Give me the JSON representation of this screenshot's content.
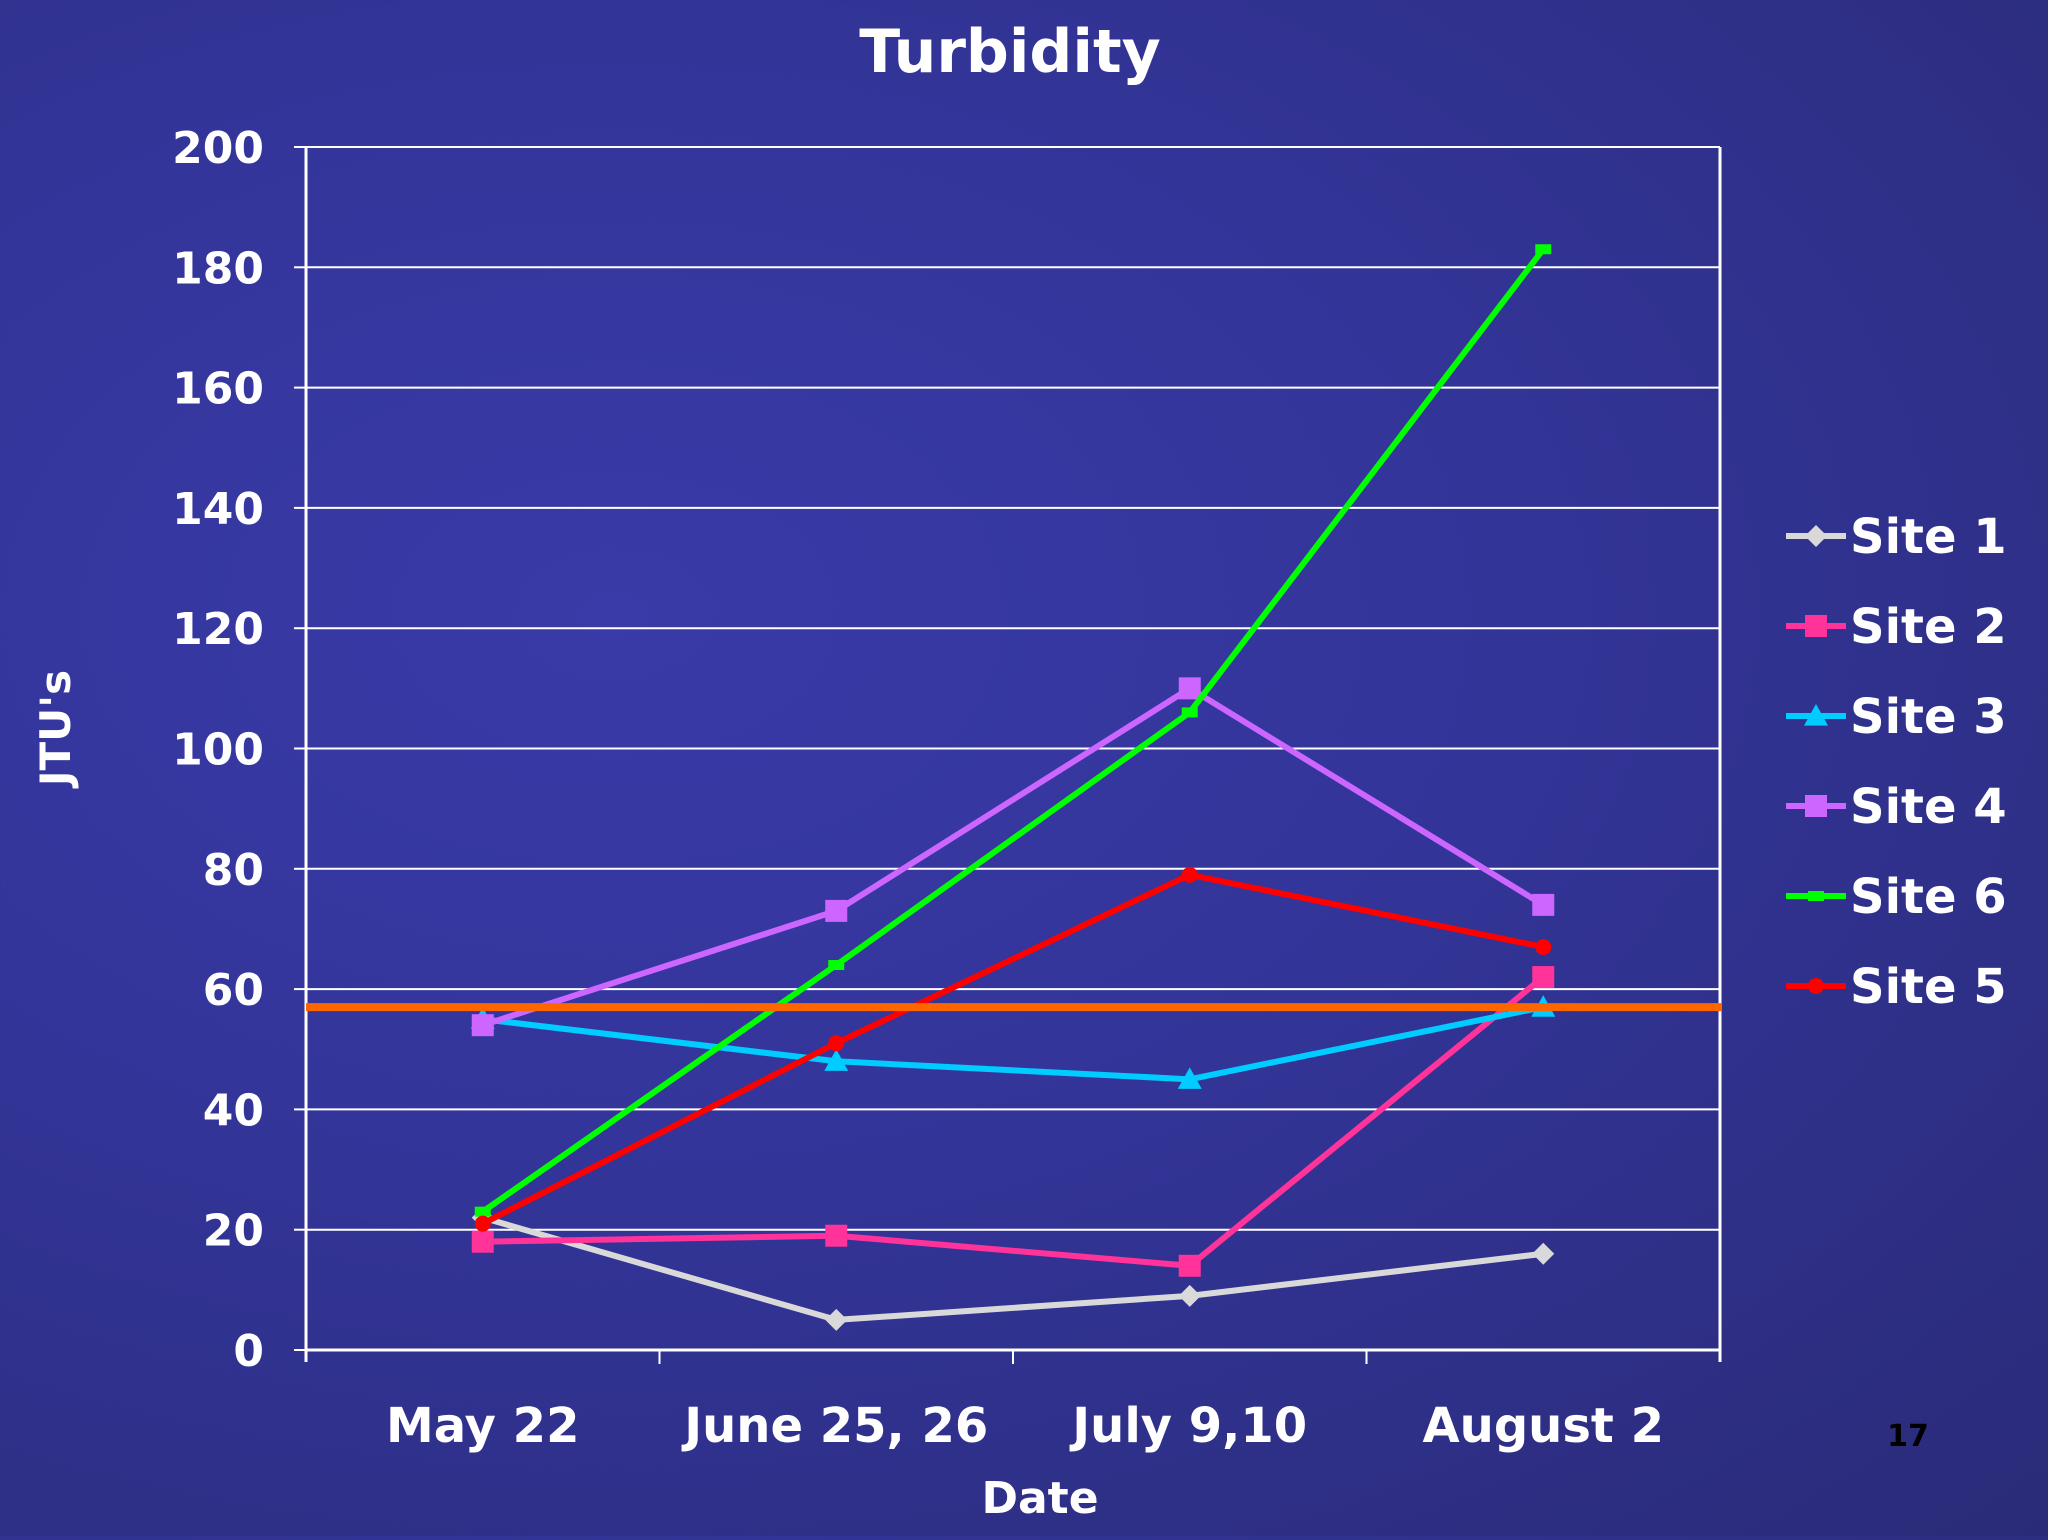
{
  "slide": {
    "page_number": "17"
  },
  "chart_data": {
    "type": "line",
    "title": "Turbidity",
    "xlabel": "Date",
    "ylabel": "JTU's",
    "categories": [
      "May 22",
      "June 25, 26",
      "July 9,10",
      "August 2"
    ],
    "ylim": [
      0,
      200
    ],
    "yticks": [
      0,
      20,
      40,
      60,
      80,
      100,
      120,
      140,
      160,
      180,
      200
    ],
    "grid": true,
    "legend_position": "right",
    "series": [
      {
        "name": "Site 1",
        "values": [
          22,
          5,
          9,
          16
        ],
        "color": "#d9d9d9",
        "marker": "diamond"
      },
      {
        "name": "Site 2",
        "values": [
          18,
          19,
          14,
          62
        ],
        "color": "#ff3399",
        "marker": "square"
      },
      {
        "name": "Site 3",
        "values": [
          55,
          48,
          45,
          57
        ],
        "color": "#00ccff",
        "marker": "triangle"
      },
      {
        "name": "Site 4",
        "values": [
          54,
          73,
          110,
          74
        ],
        "color": "#cc66ff",
        "marker": "square"
      },
      {
        "name": "Site 6",
        "values": [
          23,
          64,
          106,
          183
        ],
        "color": "#00ff00",
        "marker": "dash"
      },
      {
        "name": "Site 5",
        "values": [
          21,
          51,
          79,
          67
        ],
        "color": "#ff0000",
        "marker": "circle"
      }
    ],
    "reference_line": {
      "value": 57,
      "color": "#ff6600"
    }
  }
}
